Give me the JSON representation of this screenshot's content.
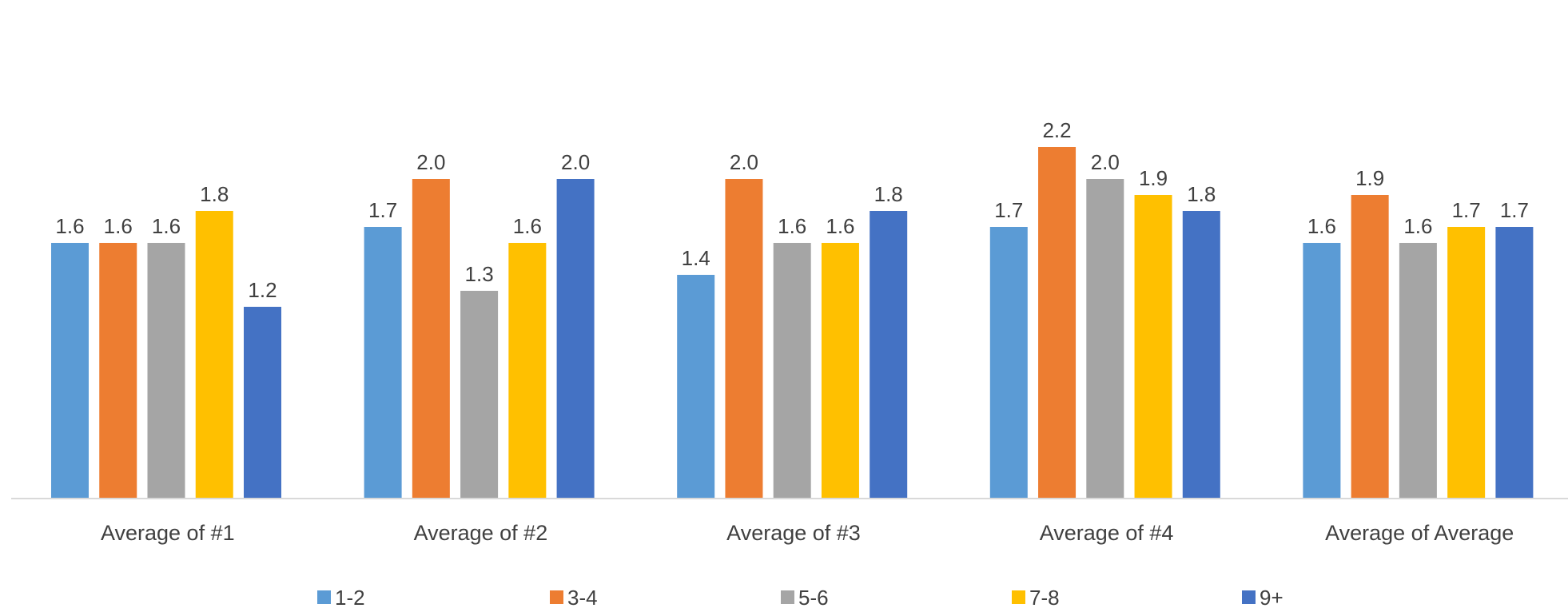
{
  "chart_data": {
    "type": "bar",
    "title": "",
    "xlabel": "",
    "ylabel": "",
    "ylim": [
      0,
      2.3
    ],
    "grid": false,
    "legend_position": "bottom",
    "categories": [
      "Average of #1",
      "Average of #2",
      "Average of #3",
      "Average of #4",
      "Average of Average"
    ],
    "series": [
      {
        "name": "1-2",
        "color": "#5B9BD5",
        "values": [
          1.6,
          1.7,
          1.4,
          1.7,
          1.6
        ],
        "labels": [
          "1.6",
          "1.7",
          "1.4",
          "1.7",
          "1.6"
        ]
      },
      {
        "name": "3-4",
        "color": "#ED7D31",
        "values": [
          1.6,
          2.0,
          2.0,
          2.2,
          1.9
        ],
        "labels": [
          "1.6",
          "2.0",
          "2.0",
          "2.2",
          "1.9"
        ]
      },
      {
        "name": "5-6",
        "color": "#A5A5A5",
        "values": [
          1.6,
          1.3,
          1.6,
          2.0,
          1.6
        ],
        "labels": [
          "1.6",
          "1.3",
          "1.6",
          "2.0",
          "1.6"
        ]
      },
      {
        "name": "7-8",
        "color": "#FFC000",
        "values": [
          1.8,
          1.6,
          1.6,
          1.9,
          1.7
        ],
        "labels": [
          "1.8",
          "1.6",
          "1.6",
          "1.9",
          "1.7"
        ]
      },
      {
        "name": "9+",
        "color": "#4472C4",
        "values": [
          1.2,
          2.0,
          1.8,
          1.8,
          1.7
        ],
        "labels": [
          "1.2",
          "2.0",
          "1.8",
          "1.8",
          "1.7"
        ]
      }
    ]
  }
}
